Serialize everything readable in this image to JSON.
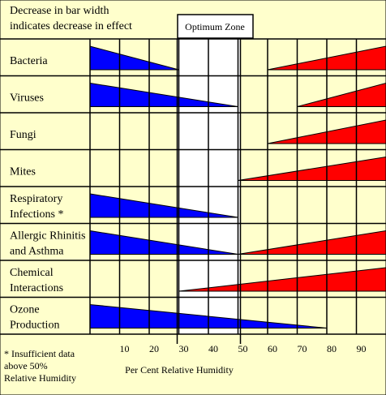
{
  "chart_data": {
    "type": "bar",
    "note_lines": [
      "Decrease in bar width",
      "indicates decrease in effect"
    ],
    "zone_label": "Optimum Zone",
    "optimum_zone": [
      30,
      50
    ],
    "xlabel": "Per Cent Relative Humidity",
    "xlim": [
      0,
      100
    ],
    "ticks": [
      10,
      20,
      30,
      40,
      50,
      60,
      70,
      80,
      90
    ],
    "footnote": [
      "* Insufficient data",
      "above 50%",
      "Relative Humidity"
    ],
    "colors": {
      "background": "#ffffcc",
      "left": "#0000ff",
      "right": "#ff0000",
      "zone": "#ffffff"
    },
    "rows": [
      {
        "label": [
          "Bacteria"
        ],
        "left_end": 30,
        "right_start": 60
      },
      {
        "label": [
          "Viruses"
        ],
        "left_end": 50,
        "right_start": 70
      },
      {
        "label": [
          "Fungi"
        ],
        "left_end": null,
        "right_start": 60
      },
      {
        "label": [
          "Mites"
        ],
        "left_end": null,
        "right_start": 50
      },
      {
        "label": [
          "Respiratory",
          "Infections *"
        ],
        "left_end": 50,
        "right_start": null
      },
      {
        "label": [
          "Allergic Rhinitis",
          "and Asthma"
        ],
        "left_end": 50,
        "right_start": 50
      },
      {
        "label": [
          "Chemical",
          "Interactions"
        ],
        "left_end": null,
        "right_start": 30
      },
      {
        "label": [
          "Ozone",
          "Production"
        ],
        "left_end": 80,
        "right_start": null
      }
    ]
  }
}
